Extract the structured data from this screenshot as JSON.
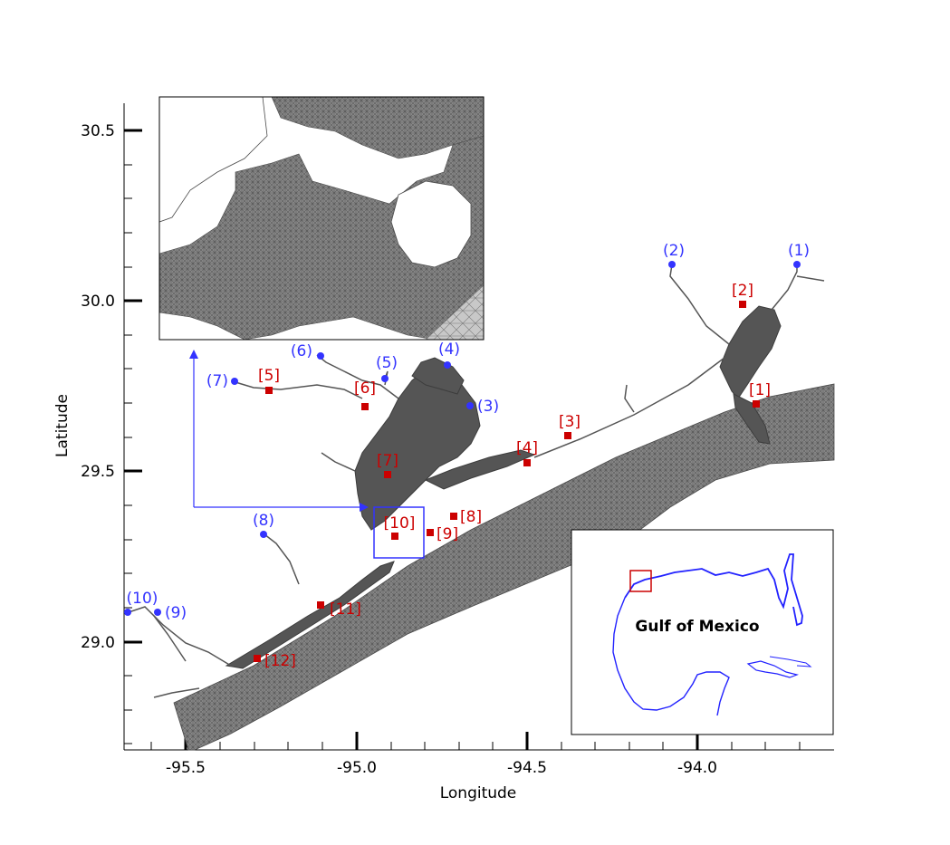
{
  "axes": {
    "x_title": "Longitude",
    "y_title": "Latitude",
    "x_ticks": [
      "-95.5",
      "-95.0",
      "-94.5",
      "-94.0"
    ],
    "y_ticks": [
      "30.5",
      "30.0",
      "29.5",
      "29.0"
    ]
  },
  "inset_map": {
    "label": "Gulf of Mexico"
  },
  "colors": {
    "mesh": "#555555",
    "blue_marker": "#3333ff",
    "red_marker": "#cc0000",
    "highlight_box_blue": "#3333ff",
    "inset_box_red": "#cc0000"
  },
  "blue_sites": [
    {
      "id": "b1",
      "label": "(1)"
    },
    {
      "id": "b2",
      "label": "(2)"
    },
    {
      "id": "b3",
      "label": "(3)"
    },
    {
      "id": "b4",
      "label": "(4)"
    },
    {
      "id": "b5",
      "label": "(5)"
    },
    {
      "id": "b6",
      "label": "(6)"
    },
    {
      "id": "b7",
      "label": "(7)"
    },
    {
      "id": "b8",
      "label": "(8)"
    },
    {
      "id": "b9",
      "label": "(9)"
    },
    {
      "id": "b10",
      "label": "(10)"
    }
  ],
  "red_sites": [
    {
      "id": "r1",
      "label": "[1]"
    },
    {
      "id": "r2",
      "label": "[2]"
    },
    {
      "id": "r3",
      "label": "[3]"
    },
    {
      "id": "r4",
      "label": "[4]"
    },
    {
      "id": "r5",
      "label": "[5]"
    },
    {
      "id": "r6",
      "label": "[6]"
    },
    {
      "id": "r7",
      "label": "[7]"
    },
    {
      "id": "r8",
      "label": "[8]"
    },
    {
      "id": "r9",
      "label": "[9]"
    },
    {
      "id": "r10",
      "label": "[10]"
    },
    {
      "id": "r11",
      "label": "[11]"
    },
    {
      "id": "r12",
      "label": "[12]"
    }
  ]
}
